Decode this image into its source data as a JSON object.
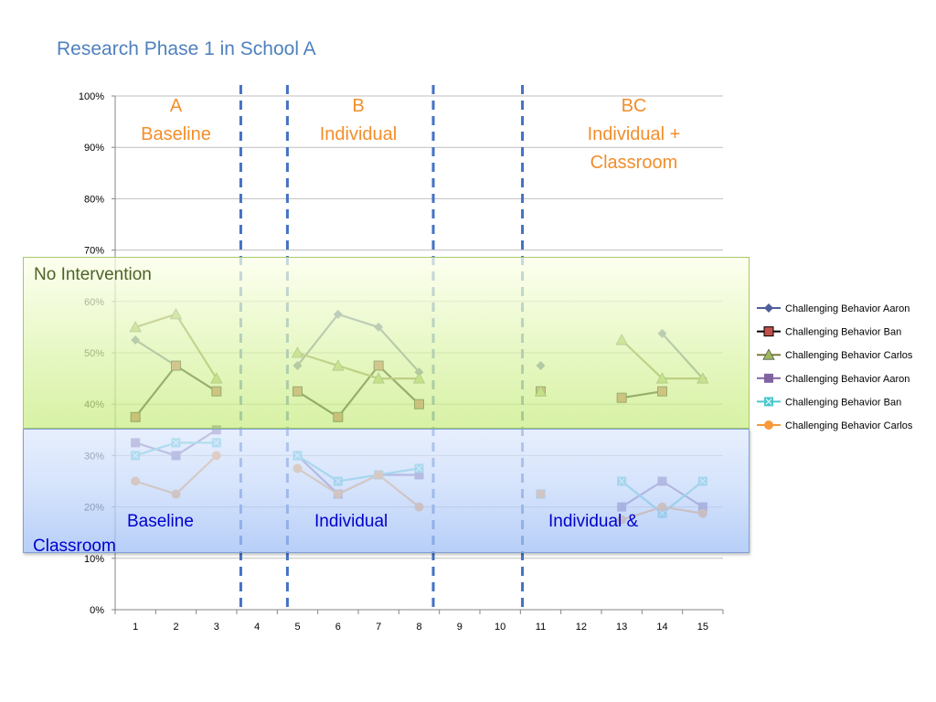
{
  "slide_title": "Research Phase 1 in School A",
  "phase_labels": [
    {
      "lines": [
        "A",
        "Baseline"
      ],
      "x": 2
    },
    {
      "lines": [
        "B",
        "Individual"
      ],
      "x": 6.5
    },
    {
      "lines": [
        "BC",
        "Individual +",
        "Classroom"
      ],
      "x": 13.3
    }
  ],
  "overlays": {
    "no_intervention": {
      "label": "No Intervention",
      "color": "#4f6228"
    },
    "classroom": {
      "label_baseline": "Baseline",
      "label_individual": "Individual",
      "label_individual_and": "Individual &",
      "label_classroom": "Classroom",
      "color": "#0000cc"
    }
  },
  "chart_data": {
    "type": "line",
    "title": "",
    "x": [
      1,
      2,
      3,
      4,
      5,
      6,
      7,
      8,
      9,
      10,
      11,
      12,
      13,
      14,
      15
    ],
    "ylim": [
      0,
      1
    ],
    "yticks": [
      "0%",
      "10%",
      "20%",
      "30%",
      "40%",
      "50%",
      "60%",
      "70%",
      "80%",
      "90%",
      "100%"
    ],
    "grid": true,
    "legend_position": "right",
    "phase_change_lines_x": [
      3.6,
      4.75,
      8.35,
      10.55
    ],
    "series": [
      {
        "name": "Challenging Behavior Aaron",
        "color": "#4f5f9b",
        "marker": "diamond",
        "values": [
          0.525,
          0.475,
          null,
          null,
          0.475,
          0.575,
          0.55,
          0.4625,
          null,
          null,
          0.475,
          null,
          null,
          0.5375,
          0.45
        ]
      },
      {
        "name": "Challenging Behavior Ban",
        "color": "#000000",
        "marker_fill": "#c0504d",
        "marker": "square",
        "values": [
          0.375,
          0.475,
          0.425,
          null,
          0.425,
          0.375,
          0.475,
          0.4,
          null,
          null,
          0.425,
          null,
          0.4125,
          0.425,
          null
        ]
      },
      {
        "name": "Challenging Behavior Carlos",
        "color": "#7f7a3a",
        "marker_fill": "#9bbb59",
        "marker": "triangle",
        "values": [
          0.55,
          0.575,
          0.45,
          null,
          0.5,
          0.475,
          0.45,
          0.45,
          null,
          null,
          0.425,
          null,
          0.525,
          0.45,
          0.45
        ]
      },
      {
        "name": "Challenging Behavior Aaron",
        "color": "#8064a2",
        "marker": "square",
        "values": [
          0.325,
          0.3,
          0.35,
          null,
          0.3,
          0.225,
          0.2625,
          0.2625,
          null,
          null,
          0.225,
          null,
          0.2,
          0.25,
          0.2
        ]
      },
      {
        "name": "Challenging Behavior Ban",
        "color": "#4bc8cc",
        "marker": "square-x",
        "values": [
          0.3,
          0.325,
          0.325,
          null,
          0.3,
          0.25,
          0.2625,
          0.275,
          null,
          null,
          0.225,
          null,
          0.25,
          0.1875,
          0.25
        ]
      },
      {
        "name": "Challenging Behavior Carlos",
        "color": "#f79a3a",
        "marker": "circle",
        "values": [
          0.25,
          0.225,
          0.3,
          null,
          0.275,
          0.225,
          0.2625,
          0.2,
          null,
          null,
          0.225,
          null,
          0.175,
          0.2,
          0.1875
        ]
      }
    ]
  }
}
